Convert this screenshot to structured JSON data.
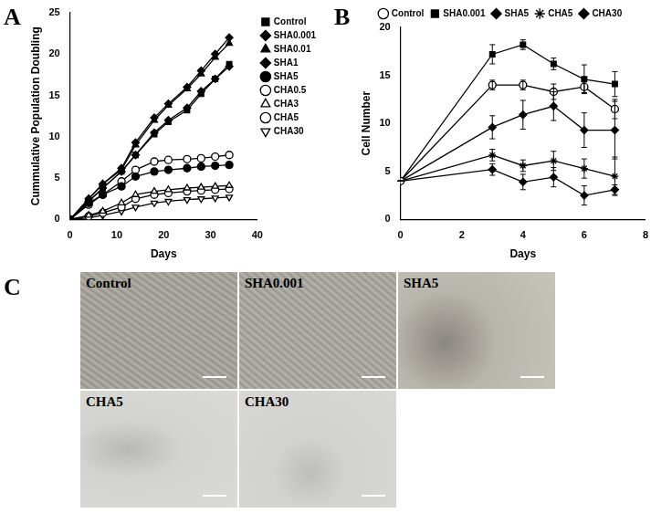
{
  "chart_data": [
    {
      "panel": "A",
      "type": "line",
      "x_label": "Days",
      "y_label": "Cummulative Population Doubling",
      "xlim": [
        0,
        40
      ],
      "xticks": [
        0,
        10,
        20,
        30,
        40
      ],
      "ylim": [
        0,
        25
      ],
      "yticks": [
        0,
        5,
        10,
        15,
        20,
        25
      ],
      "grid": false,
      "legend": "right",
      "x": [
        0,
        4,
        7,
        11,
        14,
        18,
        21,
        25,
        28,
        31,
        34
      ],
      "series": [
        {
          "name": "Control",
          "color": "#000000",
          "marker": "square",
          "values": [
            0,
            2.2,
            3.8,
            5.8,
            7.8,
            10.3,
            11.8,
            13.2,
            15.2,
            17,
            18.8
          ]
        },
        {
          "name": "SHA0.001",
          "color": "#000000",
          "marker": "diamond",
          "values": [
            0,
            2.5,
            4.3,
            6.2,
            9.3,
            12.3,
            14,
            16,
            18,
            20,
            22
          ]
        },
        {
          "name": "SHA0.01",
          "color": "#000000",
          "marker": "triangle",
          "values": [
            0,
            2.5,
            4.3,
            6,
            9,
            12,
            13.8,
            15.8,
            17.6,
            19.6,
            21.3
          ]
        },
        {
          "name": "SHA1",
          "color": "#000000",
          "marker": "diamond",
          "values": [
            0,
            2.2,
            3.8,
            5.8,
            7.8,
            10.5,
            12,
            13.5,
            15.5,
            17,
            18.5
          ]
        },
        {
          "name": "SHA5",
          "color": "#000000",
          "marker": "circle",
          "values": [
            0,
            2,
            3,
            4,
            5.2,
            5.8,
            6,
            6.2,
            6.4,
            6.5,
            6.6
          ]
        },
        {
          "name": "CHA0.5",
          "color": "#000000",
          "marker": "open_circle",
          "values": [
            0,
            1.8,
            3,
            4.6,
            6,
            7,
            7.2,
            7.3,
            7.4,
            7.6,
            7.8
          ]
        },
        {
          "name": "CHA3",
          "color": "#000000",
          "marker": "open_triangle",
          "values": [
            0,
            0.5,
            1,
            2,
            3,
            3.4,
            3.6,
            3.8,
            3.9,
            4,
            4.1
          ]
        },
        {
          "name": "CHA5",
          "color": "#000000",
          "marker": "open_circle",
          "values": [
            0,
            0.4,
            0.8,
            1.5,
            2.5,
            3,
            3.2,
            3.4,
            3.5,
            3.6,
            3.7
          ]
        },
        {
          "name": "CHA30",
          "color": "#000000",
          "marker": "open_triangle_down",
          "values": [
            0,
            0.2,
            0.5,
            1,
            1.5,
            2,
            2.2,
            2.4,
            2.5,
            2.6,
            2.7
          ]
        }
      ]
    },
    {
      "panel": "B",
      "type": "line",
      "x_label": "Days",
      "y_label": "Cell Number",
      "xlim": [
        0,
        8
      ],
      "xticks": [
        0,
        2,
        4,
        6,
        8
      ],
      "ylim": [
        0,
        20
      ],
      "yticks": [
        0,
        5,
        10,
        15,
        20
      ],
      "grid": false,
      "legend": "top",
      "x": [
        0,
        3,
        4,
        5,
        6,
        7
      ],
      "series": [
        {
          "name": "Control",
          "color": "#000000",
          "marker": "open_circle",
          "values": [
            4,
            14,
            14,
            13.3,
            13.8,
            11.5
          ],
          "errors": [
            0,
            0.5,
            0.5,
            0.8,
            0.6,
            1
          ]
        },
        {
          "name": "SHA0.001",
          "color": "#000000",
          "marker": "square",
          "values": [
            4,
            17.2,
            18.2,
            16.2,
            14.6,
            14.1
          ],
          "errors": [
            0,
            1,
            0.5,
            0.6,
            1.5,
            1.3
          ]
        },
        {
          "name": "SHA5",
          "color": "#000000",
          "marker": "diamond",
          "values": [
            4,
            9.6,
            10.9,
            11.8,
            9.3,
            9.3
          ],
          "errors": [
            0,
            1.2,
            1.5,
            1.5,
            1.8,
            3
          ]
        },
        {
          "name": "CHA5",
          "color": "#000000",
          "marker": "star",
          "values": [
            4,
            6.7,
            5.6,
            6.1,
            5.3,
            4.5
          ],
          "errors": [
            0,
            0.6,
            0.6,
            1,
            1,
            2
          ]
        },
        {
          "name": "CHA30",
          "color": "#000000",
          "marker": "diamond",
          "values": [
            4,
            5.2,
            3.9,
            4.4,
            2.5,
            3.1
          ],
          "errors": [
            0,
            0.6,
            0.8,
            1,
            1,
            0.5
          ]
        }
      ]
    }
  ],
  "micrographs": {
    "panel": "C",
    "labels": [
      "Control",
      "SHA0.001",
      "SHA5",
      "CHA5",
      "CHA30"
    ]
  }
}
